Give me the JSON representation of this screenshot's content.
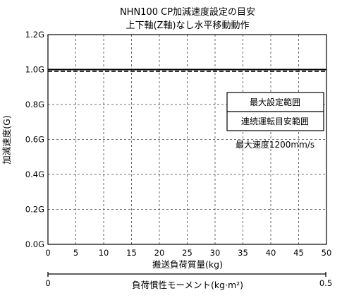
{
  "chart_data": {
    "type": "line",
    "title": "NHN100 CP加減速度設定の目安",
    "subtitle": "上下軸(Z軸)なし水平移動動作",
    "xlabel": "搬送負荷質量(kg)",
    "ylabel": "加減速度(G)",
    "xlim": [
      0,
      50
    ],
    "ylim": [
      0,
      1.2
    ],
    "x_ticks": [
      0,
      5,
      10,
      15,
      20,
      25,
      30,
      35,
      40,
      45,
      50
    ],
    "y_ticks": [
      {
        "value": 0,
        "label": "0.0G"
      },
      {
        "value": 0.2,
        "label": "0.2G"
      },
      {
        "value": 0.4,
        "label": "0.4G"
      },
      {
        "value": 0.6,
        "label": "0.6G"
      },
      {
        "value": 0.8,
        "label": "0.8G"
      },
      {
        "value": 1.0,
        "label": "1.0G"
      },
      {
        "value": 1.2,
        "label": "1.2G"
      }
    ],
    "grid": true,
    "series": [
      {
        "name": "最大設定範囲",
        "style": "solid",
        "x": [
          0,
          50
        ],
        "y": [
          1.0,
          1.0
        ]
      },
      {
        "name": "連続運転目安範囲",
        "style": "dashed",
        "x": [
          0,
          50
        ],
        "y": [
          0.99,
          0.99
        ]
      }
    ],
    "legend_position": "right",
    "annotation": "最大速度1200mm/s",
    "secondary_axis": {
      "label": "負荷慣性モーメント(kg·m²)",
      "min_label": "0",
      "max_label": "0.5",
      "range": [
        0,
        0.5
      ]
    }
  }
}
